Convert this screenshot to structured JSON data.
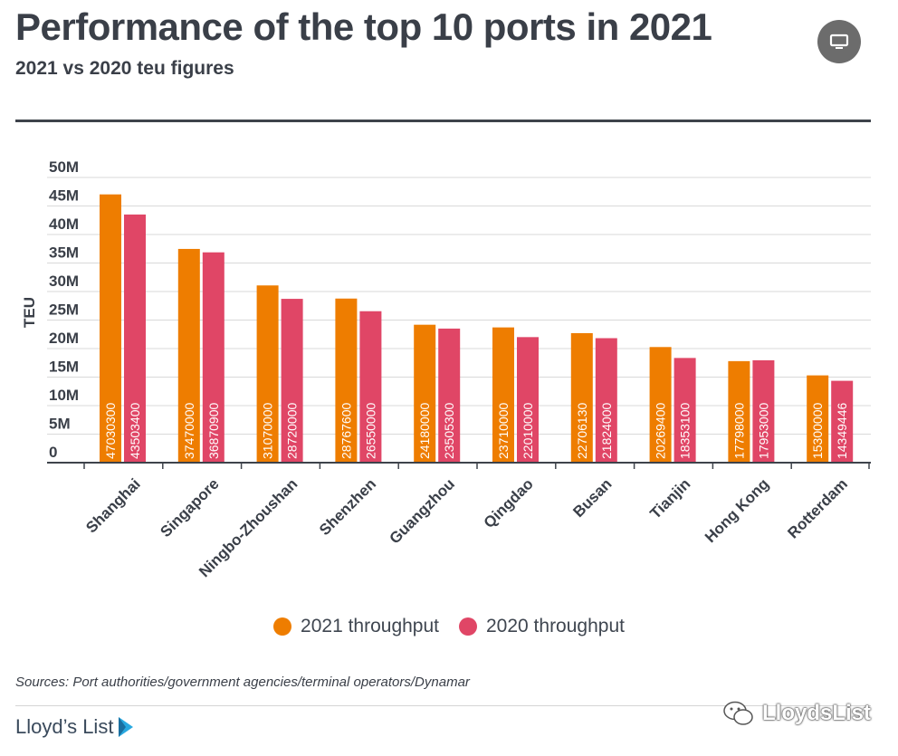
{
  "header": {
    "title": "Performance of the top 10 ports in 2021",
    "subtitle": "2021 vs 2020 teu figures"
  },
  "colors": {
    "series_2021": "#ee7d00",
    "series_2020": "#e04666",
    "text": "#3a3f48",
    "grid": "#d9d9d9"
  },
  "icons": {
    "display_button": "monitor-icon",
    "brand": "play-arrow-icon",
    "watermark": "wechat-icon"
  },
  "chart_data": {
    "type": "bar",
    "title": "Performance of the top 10 ports in 2021",
    "subtitle": "2021 vs 2020 teu figures",
    "xlabel": "",
    "ylabel": "TEU",
    "ylim": [
      0,
      50000000
    ],
    "yticks": [
      "0",
      "5M",
      "10M",
      "15M",
      "20M",
      "25M",
      "30M",
      "35M",
      "40M",
      "45M",
      "50M"
    ],
    "grid": true,
    "legend_position": "bottom",
    "categories": [
      "Shanghai",
      "Singapore",
      "Ningbo-Zhoushan",
      "Shenzhen",
      "Guangzhou",
      "Qingdao",
      "Busan",
      "Tianjin",
      "Hong Kong",
      "Rotterdam"
    ],
    "series": [
      {
        "name": "2021 throughput",
        "color": "#ee7d00",
        "values": [
          47030300,
          37470000,
          31070000,
          28767600,
          24180000,
          23710000,
          22706130,
          20269400,
          17798000,
          15300000
        ]
      },
      {
        "name": "2020 throughput",
        "color": "#e04666",
        "values": [
          43503400,
          36870900,
          28720000,
          26550000,
          23505300,
          22010000,
          21824000,
          18353100,
          17953000,
          14349446
        ]
      }
    ]
  },
  "footer": {
    "source": "Sources: Port authorities/government agencies/terminal operators/Dynamar",
    "brand": "Lloyd’s List",
    "watermark": "LloydsList"
  }
}
